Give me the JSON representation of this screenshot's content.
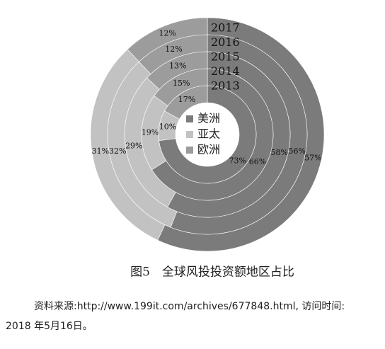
{
  "chart_data": {
    "type": "donut",
    "title": "图5　全球风投投资额地区占比",
    "categories": [
      "2017",
      "2016",
      "2015",
      "2014",
      "2013"
    ],
    "series": [
      {
        "name": "美洲",
        "color": "#7b7b7b",
        "values": [
          57,
          56,
          58,
          66,
          73
        ],
        "value_labels": [
          "57%",
          "56%",
          "58%",
          "66%",
          "73%"
        ]
      },
      {
        "name": "亚太",
        "color": "#c2c2c2",
        "values": [
          31,
          32,
          29,
          19,
          10
        ],
        "value_labels": [
          "31%",
          "32%",
          "29%",
          "19%",
          "10%"
        ]
      },
      {
        "name": "欧洲",
        "color": "#9c9c9c",
        "values": [
          12,
          12,
          13,
          15,
          17
        ],
        "value_labels": [
          "12%",
          "12%",
          "13%",
          "15%",
          "17%"
        ]
      }
    ]
  },
  "source": [
    "资料来源:http://www.199it.com/archives/677848.html, 访问时间:",
    "2018 年5月16日。"
  ]
}
